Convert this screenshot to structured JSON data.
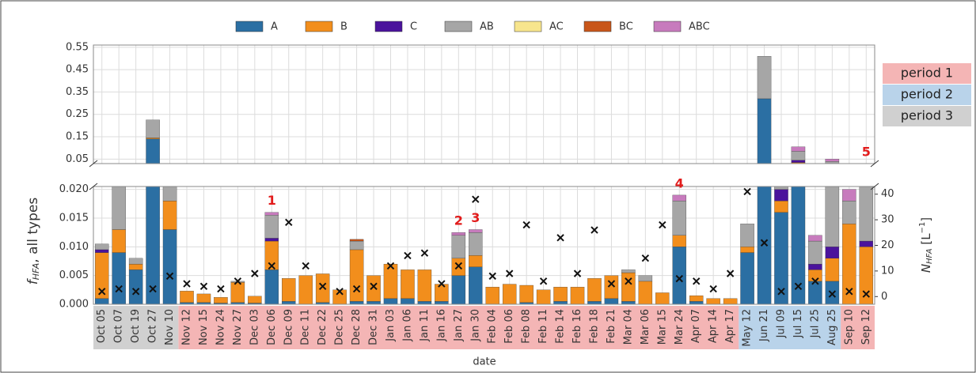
{
  "chart_data": {
    "type": "bar",
    "stacked": true,
    "ylabel": [
      "f",
      "HFA",
      ", all types"
    ],
    "y2label": [
      "N",
      "HFA",
      " [L",
      "−1",
      "]"
    ],
    "xlabel": "date",
    "categories": [
      "Oct 05",
      "Oct 07",
      "Oct 19",
      "Oct 27",
      "Nov 10",
      "Nov 12",
      "Nov 15",
      "Nov 24",
      "Nov 27",
      "Dec 03",
      "Dec 06",
      "Dec 09",
      "Dec 11",
      "Dec 22",
      "Dec 25",
      "Dec 28",
      "Dec 31",
      "Jan 03",
      "Jan 06",
      "Jan 11",
      "Jan 16",
      "Jan 27",
      "Jan 30",
      "Feb 04",
      "Feb 06",
      "Feb 08",
      "Feb 11",
      "Feb 14",
      "Feb 16",
      "Feb 18",
      "Feb 21",
      "Mar 04",
      "Mar 06",
      "Mar 15",
      "Mar 24",
      "Apr 07",
      "Apr 14",
      "Apr 17",
      "May 12",
      "Jun 21",
      "Jul 09",
      "Jul 15",
      "Jul 25",
      "Aug 25",
      "Sep 10",
      "Sep 12"
    ],
    "series": [
      {
        "name": "A",
        "color": "#2b6fa3",
        "values": [
          0.001,
          0.009,
          0.006,
          0.14,
          0.013,
          0.0003,
          0.0003,
          0.0002,
          0.0003,
          0.0002,
          0.006,
          0.0005,
          0,
          0.0003,
          0,
          0.0005,
          0.0005,
          0.001,
          0.001,
          0.0005,
          0.0005,
          0.005,
          0.0065,
          0,
          0,
          0.0003,
          0,
          0.0005,
          0,
          0.0005,
          0.001,
          0.0005,
          0,
          0,
          0.01,
          0.0005,
          0,
          0,
          0.009,
          0.32,
          0.016,
          0.03,
          0.004,
          0.004,
          0,
          0
        ]
      },
      {
        "name": "B",
        "color": "#f28e1c",
        "values": [
          0.008,
          0.004,
          0.001,
          0.005,
          0.005,
          0.002,
          0.0015,
          0.001,
          0.0035,
          0.0012,
          0.005,
          0.004,
          0.005,
          0.005,
          0.0025,
          0.009,
          0.0045,
          0.006,
          0.005,
          0.0055,
          0.003,
          0.003,
          0.002,
          0.003,
          0.0035,
          0.003,
          0.0025,
          0.0025,
          0.003,
          0.004,
          0.004,
          0.005,
          0.004,
          0.002,
          0.002,
          0.001,
          0.001,
          0.001,
          0.001,
          0,
          0.002,
          0.005,
          0.002,
          0.004,
          0.014,
          0.01
        ]
      },
      {
        "name": "C",
        "color": "#4b139c",
        "values": [
          0.0005,
          0,
          0,
          0,
          0,
          0,
          0,
          0,
          0,
          0,
          0.0005,
          0,
          0,
          0,
          0,
          0,
          0,
          0,
          0,
          0,
          0,
          0,
          0,
          0,
          0,
          0,
          0,
          0,
          0,
          0,
          0,
          0,
          0,
          0,
          0,
          0,
          0,
          0,
          0,
          0,
          0.002,
          0.01,
          0.001,
          0.002,
          0,
          0.001
        ]
      },
      {
        "name": "AB",
        "color": "#a6a6a6",
        "values": [
          0.001,
          0.008,
          0.001,
          0.08,
          0.003,
          0,
          0,
          0,
          0.0002,
          0,
          0.004,
          0,
          0,
          0,
          0,
          0.0015,
          0,
          0,
          0,
          0,
          0,
          0.004,
          0.004,
          0,
          0,
          0,
          0,
          0,
          0,
          0,
          0,
          0.0005,
          0.001,
          0,
          0.006,
          0,
          0,
          0,
          0.004,
          0.19,
          0.005,
          0.04,
          0.004,
          0.03,
          0.004,
          0.01
        ]
      },
      {
        "name": "AC",
        "color": "#f7e58d",
        "values": [
          0,
          0,
          0,
          0,
          0,
          0,
          0,
          0,
          0,
          0,
          0,
          0,
          0,
          0,
          0,
          0,
          0,
          0,
          0,
          0,
          0,
          0,
          0,
          0,
          0,
          0,
          0,
          0,
          0,
          0,
          0,
          0,
          0,
          0,
          0,
          0,
          0,
          0,
          0,
          0,
          0,
          0,
          0,
          0,
          0,
          0
        ]
      },
      {
        "name": "BC",
        "color": "#c8561a",
        "values": [
          0,
          0,
          0,
          0,
          0,
          0,
          0,
          0,
          0,
          0,
          0,
          0,
          0,
          0,
          0,
          0.0003,
          0,
          0,
          0,
          0,
          0,
          0,
          0,
          0,
          0,
          0,
          0,
          0,
          0,
          0,
          0,
          0,
          0,
          0,
          0,
          0,
          0,
          0,
          0,
          0,
          0,
          0,
          0,
          0,
          0,
          0
        ]
      },
      {
        "name": "ABC",
        "color": "#c77bbd",
        "values": [
          0,
          0,
          0,
          0,
          0,
          0,
          0,
          0,
          0,
          0,
          0.0005,
          0,
          0,
          0,
          0,
          0,
          0,
          0,
          0,
          0,
          0,
          0.0005,
          0.0005,
          0,
          0,
          0,
          0,
          0,
          0,
          0,
          0,
          0,
          0,
          0,
          0.001,
          0,
          0,
          0,
          0,
          0,
          0.001,
          0.02,
          0.001,
          0.01,
          0.002,
          0.002
        ]
      }
    ],
    "scatter": {
      "axis": "y2",
      "color": "#111111",
      "values": [
        2,
        3,
        2,
        3,
        8,
        5,
        4,
        3,
        6,
        9,
        12,
        29,
        12,
        4,
        2,
        3,
        4,
        12,
        16,
        17,
        5,
        12,
        38,
        8,
        9,
        28,
        6,
        23,
        9,
        26,
        5,
        6,
        15,
        28,
        7,
        6,
        3,
        9,
        41,
        21,
        2,
        4,
        6,
        1,
        2,
        1
      ]
    },
    "ylim": [
      0,
      0.0205
    ],
    "yticks": [
      {
        "value": 0,
        "label": "0.000"
      },
      {
        "value": 0.005,
        "label": "0.005"
      },
      {
        "value": 0.01,
        "label": "0.010"
      },
      {
        "value": 0.015,
        "label": "0.015"
      },
      {
        "value": 0.02,
        "label": "0.020"
      }
    ],
    "ylim_upper": [
      0.03,
      0.56
    ],
    "yticks_upper": [
      0.05,
      0.15,
      0.25,
      0.35,
      0.45,
      0.55
    ],
    "y2lim": [
      -3,
      43
    ],
    "y2ticks": [
      0,
      10,
      20,
      30,
      40
    ],
    "grid": true,
    "periods": [
      {
        "name": "period 1",
        "color": "#f4b5b5",
        "ranges": [
          [
            "Nov 12",
            "Apr 17"
          ],
          [
            "Sep 10",
            "Sep 12"
          ]
        ]
      },
      {
        "name": "period 2",
        "color": "#b9d3ea",
        "ranges": [
          [
            "May 12",
            "Aug 25"
          ]
        ]
      },
      {
        "name": "period 3",
        "color": "#d0d0d0",
        "ranges": [
          [
            "Oct 05",
            "Nov 10"
          ]
        ]
      }
    ],
    "annotations": [
      {
        "text": "1",
        "category": "Dec 06"
      },
      {
        "text": "2",
        "category": "Jan 27"
      },
      {
        "text": "3",
        "category": "Jan 30"
      },
      {
        "text": "4",
        "category": "Mar 24"
      },
      {
        "text": "5",
        "category": "Sep 12"
      }
    ]
  }
}
